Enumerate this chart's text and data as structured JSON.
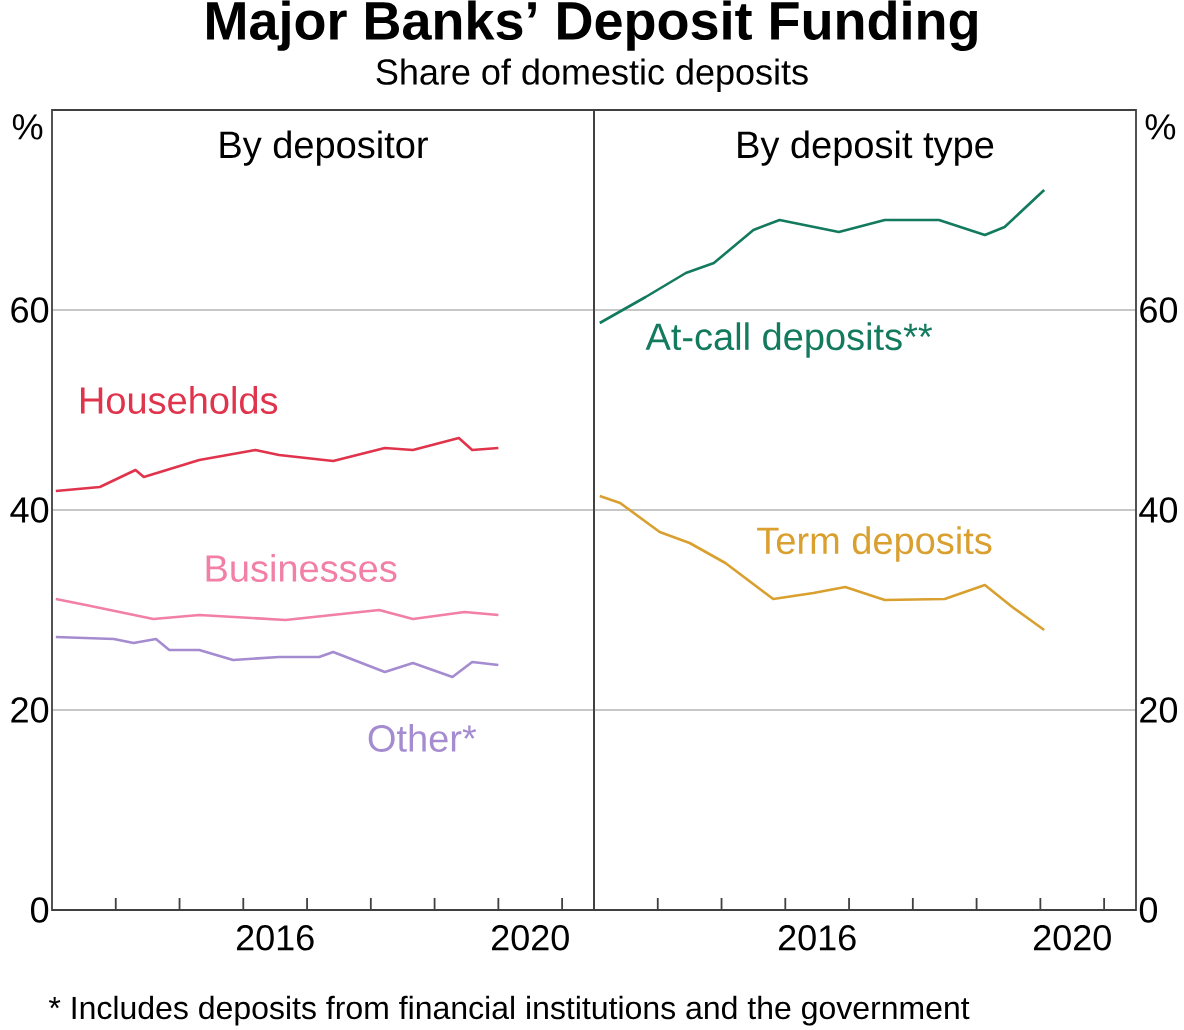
{
  "chart_data": [
    {
      "type": "line",
      "title": "Major Banks’ Deposit Funding",
      "subtitle": "Share of domestic deposits",
      "ylabel": "%",
      "annotations": [
        "By depositor",
        "* Includes deposits from financial institutions and the government"
      ],
      "xlim": [
        2013,
        2021.5
      ],
      "xticks": [
        {
          "value": 2014,
          "label": null
        },
        {
          "value": 2015,
          "label": null
        },
        {
          "value": 2016,
          "label": null
        },
        {
          "value": 2016.5,
          "label": "2016"
        },
        {
          "value": 2017,
          "label": null
        },
        {
          "value": 2018,
          "label": null
        },
        {
          "value": 2019,
          "label": null
        },
        {
          "value": 2020,
          "label": null
        },
        {
          "value": 2020.5,
          "label": "2020"
        },
        {
          "value": 2021,
          "label": null
        }
      ],
      "ylim": [
        0,
        80
      ],
      "yticks": [
        0,
        20,
        40,
        60
      ],
      "grid": "y",
      "marker": "none",
      "series": [
        {
          "name": "Households",
          "color": "#e0334c",
          "x": [
            2013.06,
            2013.75,
            2014.31,
            2014.44,
            2015.31,
            2016.19,
            2016.56,
            2017.41,
            2018.22,
            2018.66,
            2019.38,
            2019.59,
            2020.0
          ],
          "values": [
            41.9,
            42.3,
            44,
            43.3,
            45,
            46,
            45.5,
            44.9,
            46.2,
            46,
            47.2,
            46,
            46.2
          ]
        },
        {
          "name": "Businesses",
          "color": "#f27fa5",
          "x": [
            2013.06,
            2013.53,
            2014.59,
            2015.31,
            2016.66,
            2018.13,
            2018.66,
            2019.47,
            2020.0
          ],
          "values": [
            31.1,
            30.5,
            29.1,
            29.5,
            29,
            30,
            29.1,
            29.8,
            29.5
          ]
        },
        {
          "name": "Other*",
          "color": "#a58bd0",
          "x": [
            2013.06,
            2013.97,
            2014.28,
            2014.63,
            2014.84,
            2015.31,
            2015.84,
            2016.56,
            2017.19,
            2017.41,
            2018.22,
            2018.66,
            2019.28,
            2019.59,
            2020.0
          ],
          "values": [
            27.3,
            27.1,
            26.7,
            27.1,
            26,
            26,
            25,
            25.3,
            25.3,
            25.8,
            23.8,
            24.7,
            23.3,
            24.8,
            24.5
          ]
        }
      ]
    },
    {
      "type": "line",
      "ylabel": "%",
      "annotations": [
        "By deposit type"
      ],
      "xlim": [
        2013,
        2021.5
      ],
      "xticks": [
        {
          "value": 2014,
          "label": null
        },
        {
          "value": 2015,
          "label": null
        },
        {
          "value": 2016,
          "label": null
        },
        {
          "value": 2016.5,
          "label": "2016"
        },
        {
          "value": 2017,
          "label": null
        },
        {
          "value": 2018,
          "label": null
        },
        {
          "value": 2019,
          "label": null
        },
        {
          "value": 2020,
          "label": null
        },
        {
          "value": 2020.5,
          "label": "2020"
        },
        {
          "value": 2021,
          "label": null
        }
      ],
      "ylim": [
        0,
        80
      ],
      "yticks": [
        0,
        20,
        40,
        60
      ],
      "grid": "y",
      "marker": "none",
      "series": [
        {
          "name": "At-call deposits**",
          "color": "#137a5e",
          "x": [
            2013.09,
            2013.81,
            2014.44,
            2014.88,
            2015.5,
            2015.91,
            2016.84,
            2017.56,
            2018.41,
            2019.13,
            2019.44,
            2020.06
          ],
          "values": [
            58.7,
            61.3,
            63.7,
            64.7,
            68,
            69,
            67.8,
            69,
            69,
            67.5,
            68.3,
            72
          ]
        },
        {
          "name": "Term deposits",
          "color": "#d9a030",
          "x": [
            2013.09,
            2013.41,
            2014.03,
            2014.5,
            2015.06,
            2015.81,
            2016.44,
            2016.94,
            2017.56,
            2018.5,
            2019.13,
            2019.56,
            2020.06
          ],
          "values": [
            41.4,
            40.7,
            37.8,
            36.7,
            34.7,
            31.1,
            31.7,
            32.3,
            31,
            31.1,
            32.5,
            30.3,
            28
          ]
        }
      ]
    }
  ]
}
